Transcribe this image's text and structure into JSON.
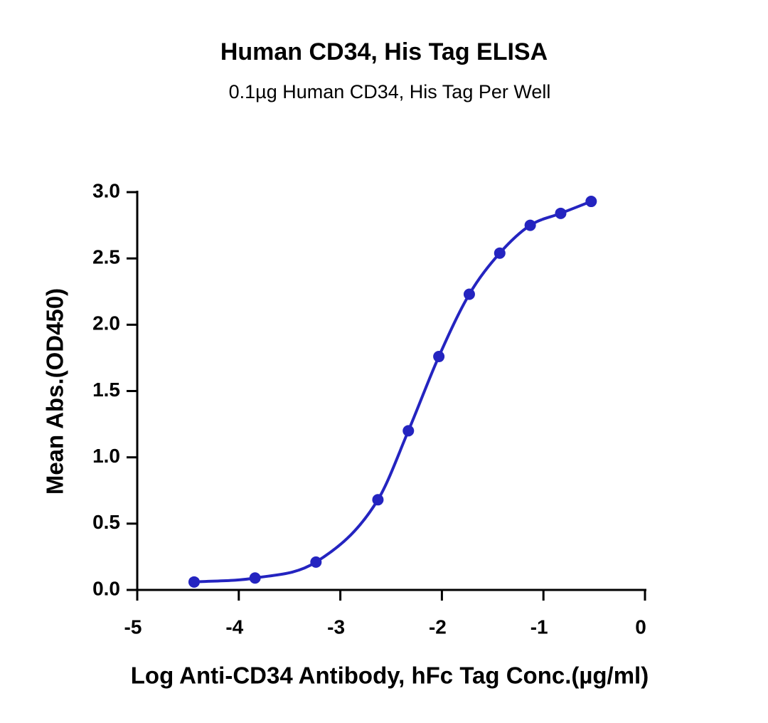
{
  "chart_data": {
    "type": "scatter",
    "title": "Human CD34, His Tag ELISA",
    "subtitle": "0.1µg Human CD34, His Tag Per Well",
    "x_label": "Log Anti-CD34 Antibody, hFc Tag Conc.(µg/ml)",
    "y_label": "Mean Abs.(OD450)",
    "x": [
      -4.44,
      -3.84,
      -3.24,
      -2.63,
      -2.33,
      -2.03,
      -1.73,
      -1.43,
      -1.13,
      -0.83,
      -0.53
    ],
    "values": [
      0.06,
      0.09,
      0.21,
      0.68,
      1.2,
      1.76,
      2.23,
      2.54,
      2.75,
      2.84,
      2.93
    ],
    "color": "#2424c0",
    "curve": true,
    "xlim": [
      -5,
      0
    ],
    "xticks": [
      -5,
      -4,
      -3,
      -2,
      -1,
      0
    ],
    "ylim": [
      0,
      3
    ],
    "yticks": [
      {
        "value": 0,
        "label": "0.0"
      },
      0.5,
      {
        "value": 1,
        "label": "1.0"
      },
      1.5,
      {
        "value": 2,
        "label": "2.0"
      },
      2.5,
      {
        "value": 3,
        "label": "3.0"
      }
    ]
  }
}
